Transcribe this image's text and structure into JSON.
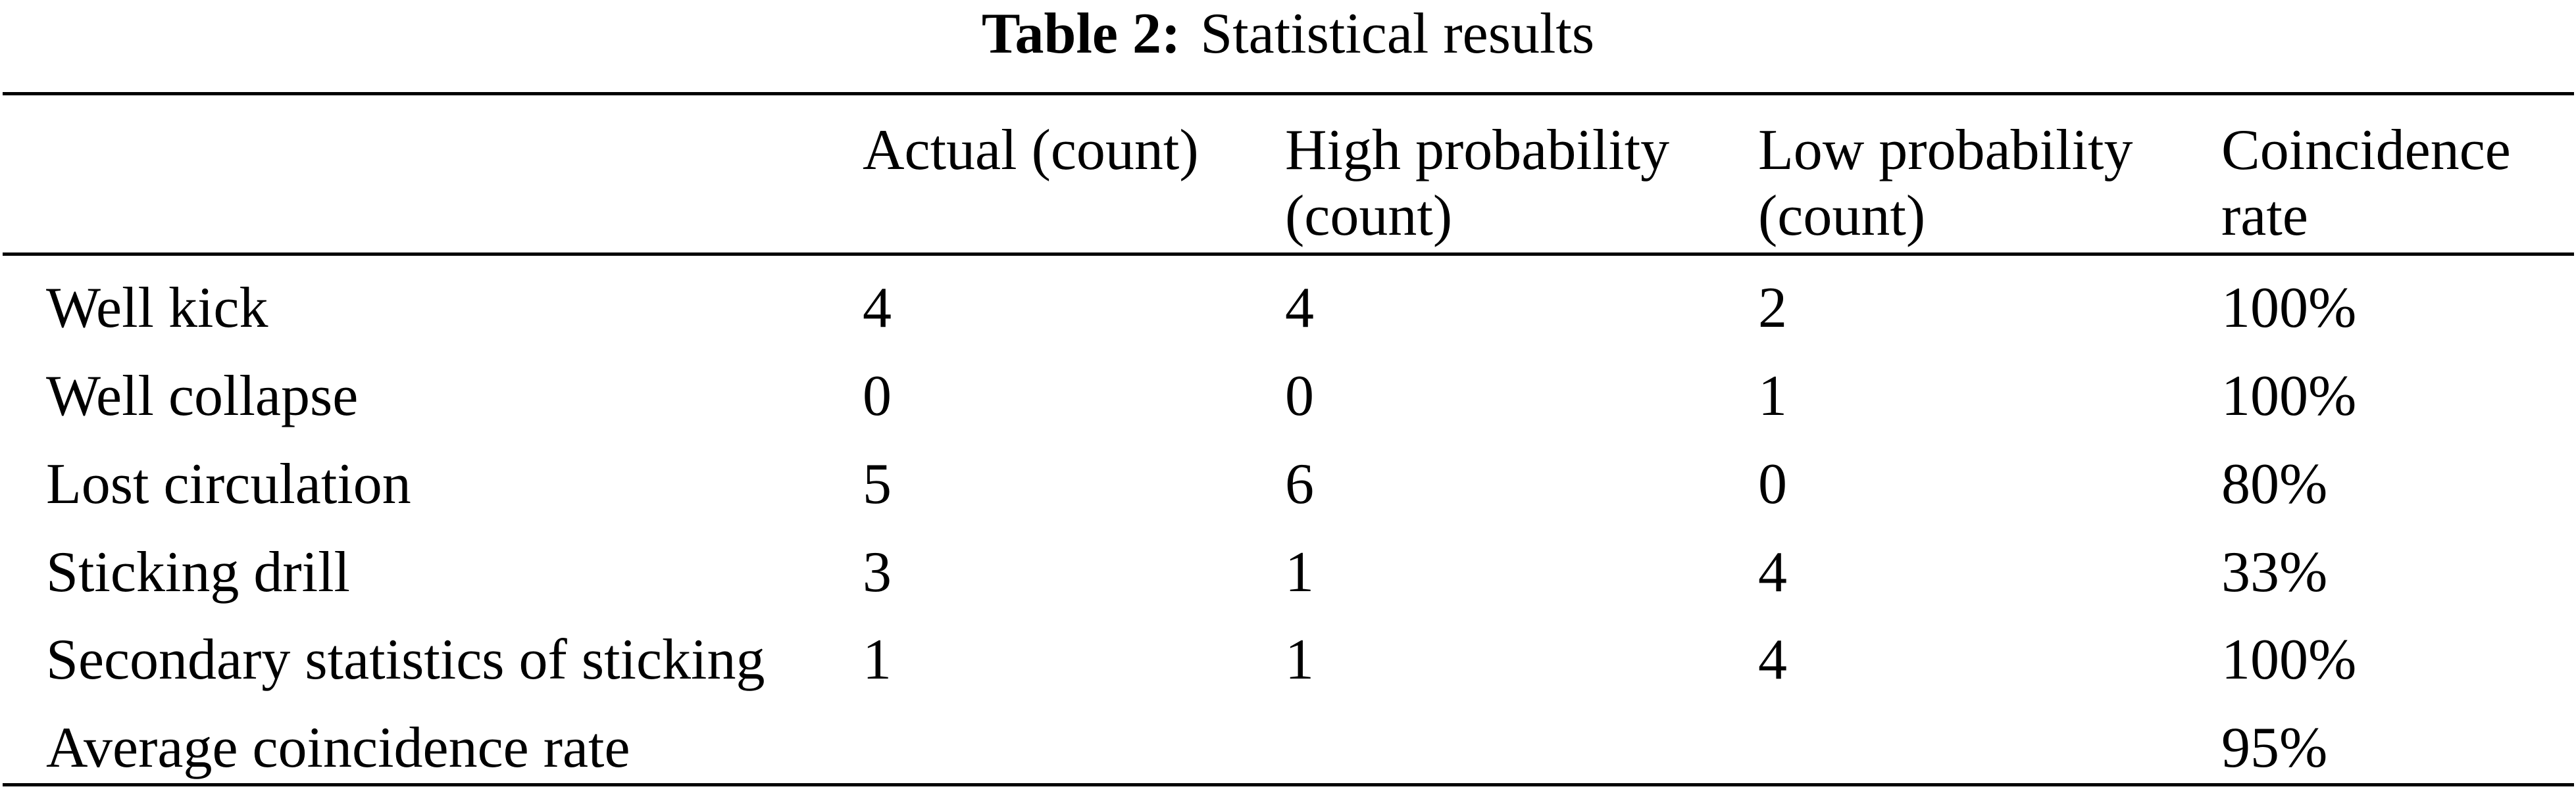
{
  "caption": {
    "label": "Table 2:",
    "text": "Statistical results"
  },
  "table": {
    "headers": [
      [
        "",
        ""
      ],
      [
        "Actual (count)",
        ""
      ],
      [
        "High probability",
        "(count)"
      ],
      [
        "Low probability",
        "(count)"
      ],
      [
        "Coincidence",
        "rate"
      ]
    ],
    "rows": [
      [
        "Well kick",
        "4",
        "4",
        "2",
        "100%"
      ],
      [
        "Well collapse",
        "0",
        "0",
        "1",
        "100%"
      ],
      [
        "Lost circulation",
        "5",
        "6",
        "0",
        "80%"
      ],
      [
        "Sticking drill",
        "3",
        "1",
        "4",
        "33%"
      ],
      [
        "Secondary statistics of sticking",
        "1",
        "1",
        "4",
        "100%"
      ],
      [
        "Average coincidence rate",
        "",
        "",
        "",
        "95%"
      ]
    ]
  }
}
